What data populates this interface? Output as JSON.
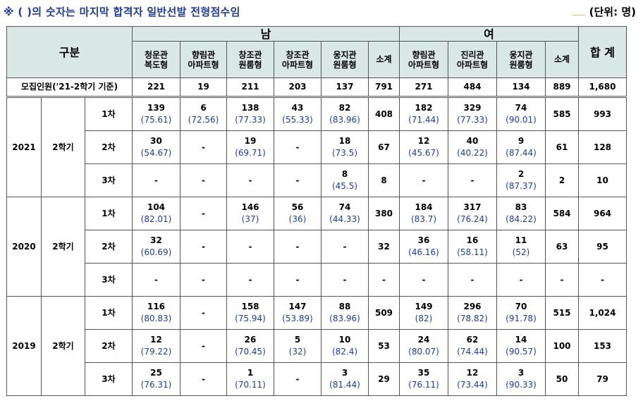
{
  "note": "※ ( )의 숫자는 마지막 합격자 일반선발 전형점수임",
  "unit_dots": "..........",
  "unit": "(단위: 명)",
  "header": {
    "category": "구분",
    "male": "남",
    "female": "여",
    "total": "합 계",
    "male_cols": [
      {
        "l1": "청운관",
        "l2": "복도형"
      },
      {
        "l1": "향림관",
        "l2": "아파트형"
      },
      {
        "l1": "창조관",
        "l2": "원룸형"
      },
      {
        "l1": "창조관",
        "l2": "아파트형"
      },
      {
        "l1": "웅지관",
        "l2": "원룸형"
      }
    ],
    "male_subtotal": "소계",
    "female_cols": [
      {
        "l1": "향림관",
        "l2": "아파트형"
      },
      {
        "l1": "진리관",
        "l2": "아파트형"
      },
      {
        "l1": "웅지관",
        "l2": "원룸형"
      }
    ],
    "female_subtotal": "소계"
  },
  "recruit": {
    "label": "모집인원('21-2학기 기준)",
    "values": [
      "221",
      "19",
      "211",
      "203",
      "137",
      "791",
      "271",
      "484",
      "134",
      "889",
      "1,680"
    ]
  },
  "years": [
    {
      "year": "2021",
      "term": "2학기",
      "rows": [
        {
          "round": "1차",
          "cells": [
            [
              "139",
              "(75.61)"
            ],
            [
              "6",
              "(72.56)"
            ],
            [
              "138",
              "(77.33)"
            ],
            [
              "43",
              "(55.33)"
            ],
            [
              "82",
              "(83.96)"
            ],
            [
              "408",
              ""
            ],
            [
              "182",
              "(71.44)"
            ],
            [
              "329",
              "(77.33)"
            ],
            [
              "74",
              "(90.01)"
            ],
            [
              "585",
              ""
            ],
            [
              "993",
              ""
            ]
          ]
        },
        {
          "round": "2차",
          "cells": [
            [
              "30",
              "(54.67)"
            ],
            [
              "-",
              ""
            ],
            [
              "19",
              "(69.71)"
            ],
            [
              "-",
              ""
            ],
            [
              "18",
              "(73.5)"
            ],
            [
              "67",
              ""
            ],
            [
              "12",
              "(45.67)"
            ],
            [
              "40",
              "(40.22)"
            ],
            [
              "9",
              "(87.44)"
            ],
            [
              "61",
              ""
            ],
            [
              "128",
              ""
            ]
          ]
        },
        {
          "round": "3차",
          "cells": [
            [
              "-",
              ""
            ],
            [
              "-",
              ""
            ],
            [
              "-",
              ""
            ],
            [
              "-",
              ""
            ],
            [
              "8",
              "(45.5)"
            ],
            [
              "8",
              ""
            ],
            [
              "-",
              ""
            ],
            [
              "-",
              ""
            ],
            [
              "2",
              "(87.37)"
            ],
            [
              "2",
              ""
            ],
            [
              "10",
              ""
            ]
          ]
        }
      ]
    },
    {
      "year": "2020",
      "term": "2학기",
      "rows": [
        {
          "round": "1차",
          "cells": [
            [
              "104",
              "(82.01)"
            ],
            [
              "-",
              ""
            ],
            [
              "146",
              "(37)"
            ],
            [
              "56",
              "(36)"
            ],
            [
              "74",
              "(44.33)"
            ],
            [
              "380",
              ""
            ],
            [
              "184",
              "(83.7)"
            ],
            [
              "317",
              "(76.24)"
            ],
            [
              "83",
              "(84.22)"
            ],
            [
              "584",
              ""
            ],
            [
              "964",
              ""
            ]
          ]
        },
        {
          "round": "2차",
          "cells": [
            [
              "32",
              "(60.69)"
            ],
            [
              "-",
              ""
            ],
            [
              "-",
              ""
            ],
            [
              "-",
              ""
            ],
            [
              "-",
              ""
            ],
            [
              "32",
              ""
            ],
            [
              "36",
              "(46.16)"
            ],
            [
              "16",
              "(58.11)"
            ],
            [
              "11",
              "(52)"
            ],
            [
              "63",
              ""
            ],
            [
              "95",
              ""
            ]
          ]
        },
        {
          "round": "3차",
          "cells": [
            [
              "-",
              ""
            ],
            [
              "-",
              ""
            ],
            [
              "-",
              ""
            ],
            [
              "-",
              ""
            ],
            [
              "-",
              ""
            ],
            [
              "-",
              ""
            ],
            [
              "-",
              ""
            ],
            [
              "-",
              ""
            ],
            [
              "-",
              ""
            ],
            [
              "-",
              ""
            ],
            [
              "-",
              ""
            ]
          ]
        }
      ]
    },
    {
      "year": "2019",
      "term": "2학기",
      "rows": [
        {
          "round": "1차",
          "cells": [
            [
              "116",
              "(80.83)"
            ],
            [
              "-",
              ""
            ],
            [
              "158",
              "(75.94)"
            ],
            [
              "147",
              "(53.89)"
            ],
            [
              "88",
              "(83.96)"
            ],
            [
              "509",
              ""
            ],
            [
              "149",
              "(82)"
            ],
            [
              "296",
              "(78.82)"
            ],
            [
              "70",
              "(91.78)"
            ],
            [
              "515",
              ""
            ],
            [
              "1,024",
              ""
            ]
          ]
        },
        {
          "round": "2차",
          "cells": [
            [
              "12",
              "(79.22)"
            ],
            [
              "-",
              ""
            ],
            [
              "26",
              "(70.45)"
            ],
            [
              "5",
              "(32)"
            ],
            [
              "10",
              "(82.4)"
            ],
            [
              "53",
              ""
            ],
            [
              "24",
              "(80.07)"
            ],
            [
              "62",
              "(74.44)"
            ],
            [
              "14",
              "(90.57)"
            ],
            [
              "100",
              ""
            ],
            [
              "153",
              ""
            ]
          ]
        },
        {
          "round": "3차",
          "cells": [
            [
              "25",
              "(76.31)"
            ],
            [
              "-",
              ""
            ],
            [
              "1",
              "(70.11)"
            ],
            [
              "-",
              ""
            ],
            [
              "3",
              "(81.44)"
            ],
            [
              "29",
              ""
            ],
            [
              "35",
              "(76.11)"
            ],
            [
              "12",
              "(73.44)"
            ],
            [
              "3",
              "(90.33)"
            ],
            [
              "50",
              ""
            ],
            [
              "79",
              ""
            ]
          ]
        }
      ]
    }
  ]
}
